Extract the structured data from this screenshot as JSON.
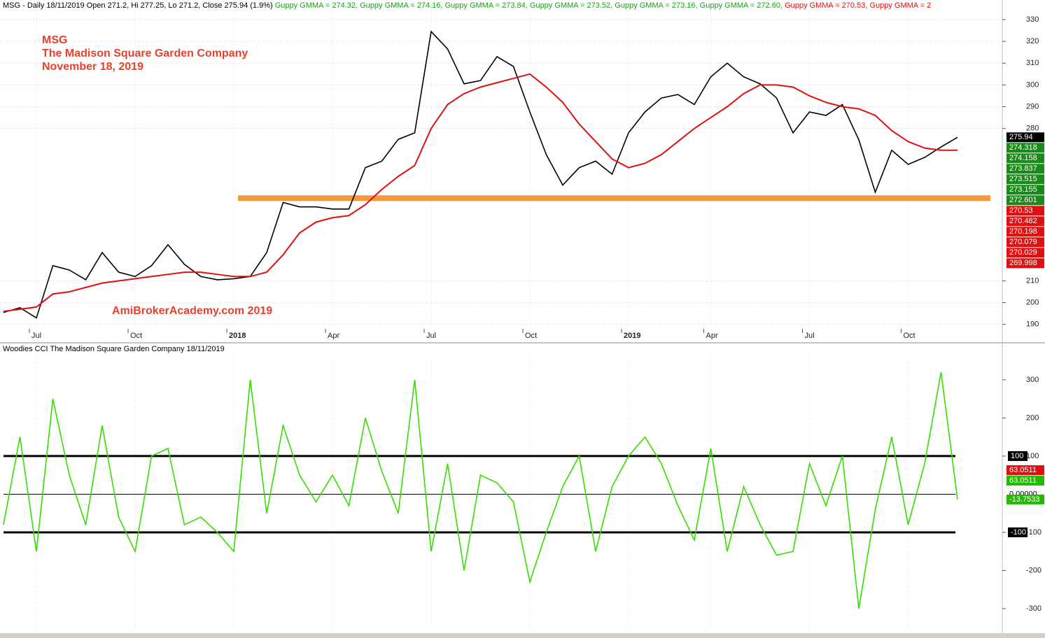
{
  "chart_data": [
    {
      "type": "line",
      "title": "MSG - Daily 18/11/2019 Open 271.2, Hi 277.25, Lo 271.2, Close 275.94 (1.9%)",
      "header_items": [
        {
          "text": "Guppy GMMA = 274.32,",
          "color": "#1a9e1a"
        },
        {
          "text": "Guppy GMMA = 274.16,",
          "color": "#1a9e1a"
        },
        {
          "text": "Guppy GMMA = 273.84,",
          "color": "#1a9e1a"
        },
        {
          "text": "Guppy GMMA = 273.52,",
          "color": "#1a9e1a"
        },
        {
          "text": "Guppy GMMA = 273.16,",
          "color": "#1a9e1a"
        },
        {
          "text": "Guppy GMMA = 272.60,",
          "color": "#1a9e1a"
        },
        {
          "text": "Guppy GMMA = 270.53,",
          "color": "#e01010"
        },
        {
          "text": "Guppy GMMA = 2",
          "color": "#e01010"
        }
      ],
      "annotations": [
        "MSG",
        "The Madison Square Garden Company",
        "November 18, 2019",
        "AmiBrokerAcademy.com   2019"
      ],
      "annotation_color": "#e8402c",
      "categories": [
        null,
        null,
        "Jul",
        null,
        null,
        null,
        null,
        null,
        "Oct",
        null,
        null,
        null,
        null,
        null,
        "2018",
        null,
        null,
        null,
        null,
        null,
        "Apr",
        null,
        null,
        null,
        null,
        null,
        "Jul",
        null,
        null,
        null,
        null,
        null,
        "Oct",
        null,
        null,
        null,
        null,
        null,
        "2019",
        null,
        null,
        null,
        null,
        "Apr",
        null,
        null,
        null,
        null,
        null,
        "Jul",
        null,
        null,
        null,
        null,
        null,
        "Oct",
        null,
        null,
        null
      ],
      "series": [
        {
          "color": "#000000",
          "values": [
            195.5,
            197.7,
            193,
            217,
            215,
            210.5,
            223,
            214,
            212,
            217,
            226.6,
            217.6,
            212,
            210.5,
            211,
            212,
            223,
            246,
            244,
            244,
            243,
            243,
            262,
            265,
            275,
            278,
            324.5,
            316.5,
            300.5,
            302,
            313,
            308.5,
            287.6,
            268,
            254,
            262,
            265,
            259,
            278,
            287.6,
            294,
            295.6,
            291,
            303.7,
            310,
            303.7,
            300.5,
            294,
            278,
            287.6,
            286,
            291,
            274.8,
            250.7,
            270,
            263.5,
            266.7,
            271.5,
            275.94
          ]
        },
        {
          "color": "#e01010",
          "values": [
            196,
            197,
            198,
            204,
            205,
            207,
            209,
            210,
            211,
            212,
            213,
            214,
            214,
            213,
            212,
            212,
            214,
            222,
            232,
            237,
            239,
            240,
            245,
            252,
            258,
            263,
            280,
            291,
            296,
            299,
            301,
            303,
            305,
            299,
            292,
            282,
            274,
            266,
            262,
            264,
            268,
            274,
            280,
            285,
            290,
            296,
            300,
            300,
            299,
            295,
            292,
            290,
            289,
            286,
            279,
            274,
            271,
            270,
            270
          ]
        }
      ],
      "support_level": 248,
      "support_color": "#f59a3c",
      "ylim": [
        188,
        334.5
      ],
      "yticks": [
        190,
        200,
        210,
        280,
        290,
        300,
        310,
        320,
        330
      ],
      "grid": true,
      "last_values": [
        {
          "value": 275.94,
          "color": "#000000"
        },
        {
          "value": 274.318,
          "color": "#1a8a1a"
        },
        {
          "value": 274.158,
          "color": "#1a8a1a"
        },
        {
          "value": 273.837,
          "color": "#1a8a1a"
        },
        {
          "value": 273.515,
          "color": "#1a8a1a"
        },
        {
          "value": 273.155,
          "color": "#1a8a1a"
        },
        {
          "value": 272.601,
          "color": "#1a8a1a"
        },
        {
          "value": 270.53,
          "color": "#e01010"
        },
        {
          "value": 270.482,
          "color": "#e01010"
        },
        {
          "value": 270.198,
          "color": "#e01010"
        },
        {
          "value": 270.079,
          "color": "#e01010"
        },
        {
          "value": 270.029,
          "color": "#e01010"
        },
        {
          "value": 269.998,
          "color": "#e01010"
        }
      ]
    },
    {
      "type": "line",
      "title": "Woodies CCI  The Madison Square Garden Company 18/11/2019",
      "series": [
        {
          "color": "#33dd00",
          "values": [
            -80,
            150,
            -150,
            250,
            50,
            -80,
            180,
            -60,
            -150,
            100,
            120,
            -80,
            -60,
            -100,
            -150,
            300,
            -50,
            180,
            50,
            -20,
            50,
            -30,
            200,
            60,
            -50,
            300,
            -150,
            80,
            -200,
            50,
            30,
            -20,
            -230,
            -100,
            20,
            100,
            -150,
            20,
            100,
            150,
            80,
            -30,
            -120,
            120,
            -150,
            20,
            -80,
            -160,
            -150,
            80,
            -30,
            100,
            -300,
            -40,
            150,
            -80,
            80,
            320,
            -13.7533
          ]
        }
      ],
      "ylim": [
        -355,
        364
      ],
      "yticks": [
        -300,
        -200,
        -100,
        100,
        200,
        300
      ],
      "levels": [
        100,
        {
          "value": 0,
          "label": "0.00000"
        },
        -100
      ],
      "last_values": [
        {
          "value": 63.0511,
          "color": "#e01010"
        },
        {
          "value": 63.0511,
          "color": "#22bb00"
        },
        {
          "value": -13.7533,
          "color": "#22bb00"
        }
      ]
    }
  ]
}
